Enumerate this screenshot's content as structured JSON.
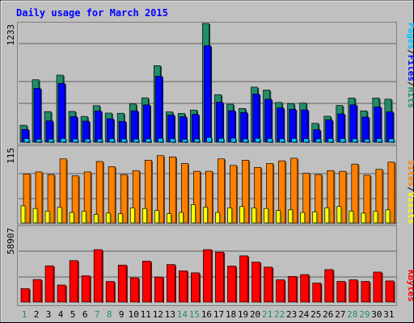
{
  "title": "Daily usage for March 2015",
  "y_max_labels": {
    "hits_panel": "1233",
    "visits_panel": "115",
    "kbytes_panel": "58907"
  },
  "legends": {
    "pages": "Pages",
    "files": "Files",
    "hits": "Hits",
    "sites": "Sites",
    "visits": "Visits",
    "kbytes": "KBytes",
    "sep": "/"
  },
  "colors": {
    "hits": "#218d6b",
    "files": "#0000ff",
    "pages": "#00c0ff",
    "visits": "#ff8000",
    "sites": "#ffff00",
    "kbytes": "#ff0000",
    "title": "#0000ff",
    "weekday_label": "#000000",
    "weekend_label": "#218d6b",
    "panel_bg": "#c0c0c0"
  },
  "chart_data": [
    {
      "type": "bar",
      "panel": "hits-files-pages",
      "title": "Daily usage for March 2015",
      "ylim": [
        0,
        1233
      ],
      "categories": [
        "1",
        "2",
        "3",
        "4",
        "5",
        "6",
        "7",
        "8",
        "9",
        "10",
        "11",
        "12",
        "13",
        "14",
        "15",
        "16",
        "17",
        "18",
        "19",
        "20",
        "21",
        "22",
        "23",
        "24",
        "25",
        "26",
        "27",
        "28",
        "29",
        "30",
        "31"
      ],
      "weekend": [
        "1",
        "7",
        "8",
        "14",
        "15",
        "21",
        "22",
        "28",
        "29"
      ],
      "series": [
        {
          "name": "Hits",
          "values": [
            175,
            648,
            317,
            696,
            319,
            267,
            379,
            302,
            300,
            396,
            460,
            794,
            314,
            298,
            333,
            1233,
            493,
            394,
            349,
            571,
            541,
            412,
            400,
            406,
            195,
            269,
            381,
            458,
            325,
            458,
            446
          ]
        },
        {
          "name": "Files",
          "values": [
            132,
            559,
            221,
            610,
            265,
            218,
            324,
            243,
            215,
            325,
            387,
            684,
            281,
            263,
            288,
            1001,
            415,
            327,
            308,
            499,
            446,
            355,
            342,
            335,
            129,
            232,
            294,
            387,
            260,
            366,
            315
          ]
        },
        {
          "name": "Pages",
          "values": [
            37,
            30,
            31,
            38,
            33,
            33,
            32,
            35,
            33,
            32,
            34,
            39,
            35,
            30,
            33,
            49,
            39,
            41,
            33,
            40,
            37,
            34,
            38,
            36,
            33,
            37,
            37,
            34,
            31,
            37,
            36
          ]
        }
      ]
    },
    {
      "type": "bar",
      "panel": "visits-sites",
      "ylim": [
        0,
        115
      ],
      "categories": [
        "1",
        "2",
        "3",
        "4",
        "5",
        "6",
        "7",
        "8",
        "9",
        "10",
        "11",
        "12",
        "13",
        "14",
        "15",
        "16",
        "17",
        "18",
        "19",
        "20",
        "21",
        "22",
        "23",
        "24",
        "25",
        "26",
        "27",
        "28",
        "29",
        "30",
        "31"
      ],
      "series": [
        {
          "name": "Visits",
          "values": [
            75,
            78,
            74,
            98,
            72,
            78,
            94,
            86,
            74,
            80,
            96,
            103,
            101,
            91,
            79,
            79,
            98,
            88,
            96,
            85,
            91,
            95,
            99,
            76,
            74,
            80,
            79,
            90,
            73,
            82,
            93
          ]
        },
        {
          "name": "Sites",
          "values": [
            26,
            22,
            18,
            24,
            16,
            18,
            13,
            15,
            14,
            23,
            22,
            19,
            14,
            16,
            28,
            24,
            16,
            23,
            25,
            23,
            22,
            19,
            20,
            16,
            17,
            23,
            25,
            18,
            15,
            18,
            20
          ]
        }
      ]
    },
    {
      "type": "bar",
      "panel": "kbytes",
      "ylim": [
        0,
        58907
      ],
      "categories": [
        "1",
        "2",
        "3",
        "4",
        "5",
        "6",
        "7",
        "8",
        "9",
        "10",
        "11",
        "12",
        "13",
        "14",
        "15",
        "16",
        "17",
        "18",
        "19",
        "20",
        "21",
        "22",
        "23",
        "24",
        "25",
        "26",
        "27",
        "28",
        "29",
        "30",
        "31"
      ],
      "series": [
        {
          "name": "KBytes",
          "values": [
            10700,
            18000,
            29000,
            13600,
            33200,
            21000,
            42000,
            16500,
            29600,
            19400,
            32800,
            20000,
            30000,
            25000,
            23400,
            42000,
            40000,
            28800,
            37000,
            32000,
            28000,
            17800,
            20500,
            22000,
            15200,
            26000,
            16500,
            17800,
            16500,
            24000,
            16900
          ]
        }
      ]
    }
  ]
}
